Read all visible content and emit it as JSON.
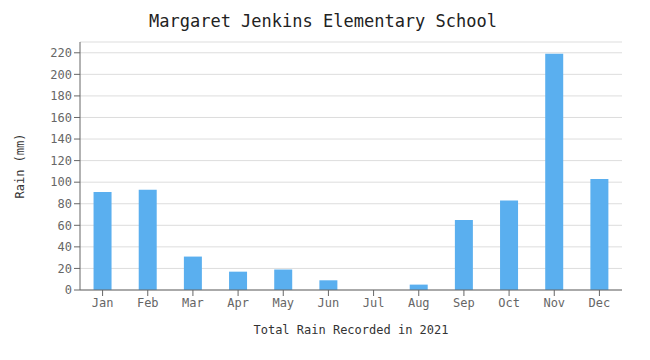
{
  "chart_data": {
    "type": "bar",
    "title": "Margaret Jenkins Elementary School",
    "xlabel": "Total Rain Recorded in 2021",
    "ylabel": "Rain (mm)",
    "categories": [
      "Jan",
      "Feb",
      "Mar",
      "Apr",
      "May",
      "Jun",
      "Jul",
      "Aug",
      "Sep",
      "Oct",
      "Nov",
      "Dec"
    ],
    "values": [
      91,
      93,
      31,
      17,
      19,
      9,
      0,
      5,
      65,
      83,
      219,
      103
    ],
    "color": "#5aafef",
    "ylim": [
      0,
      230
    ],
    "yticks": [
      0,
      20,
      40,
      60,
      80,
      100,
      120,
      140,
      160,
      180,
      200,
      220
    ],
    "grid": true
  }
}
